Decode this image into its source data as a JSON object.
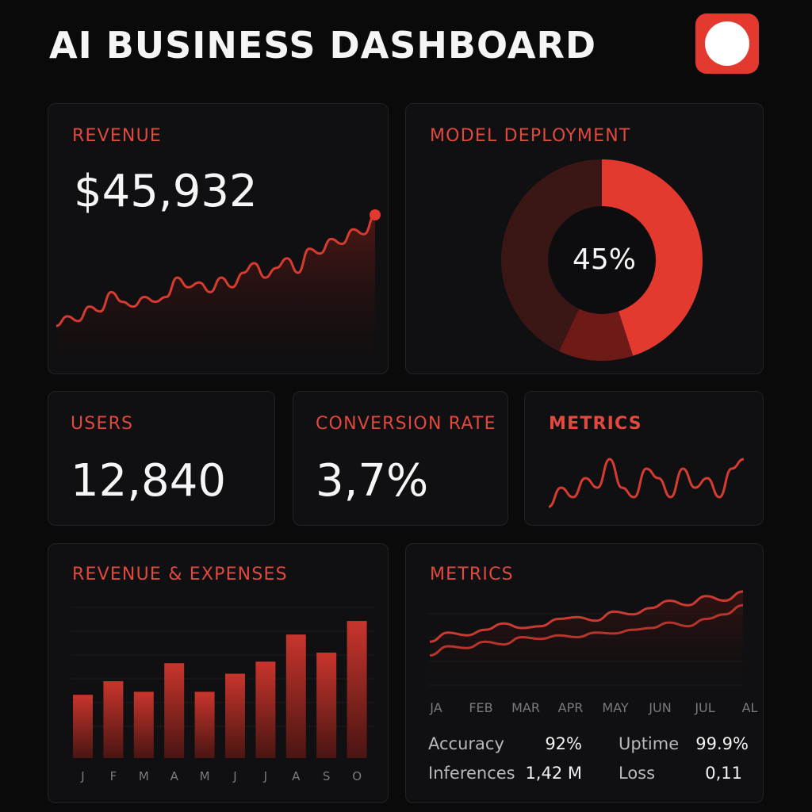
{
  "header": {
    "title": "AI BUSINESS DASHBOARD",
    "app_icon": "record-icon"
  },
  "colors": {
    "accent": "#e3392f",
    "background": "#0a0a0b",
    "card": "#101012"
  },
  "revenue": {
    "label": "REVENUE",
    "value": "$45,932",
    "trend": [
      2,
      4,
      3,
      6,
      5,
      9,
      7,
      6,
      8,
      7,
      8,
      12,
      10,
      11,
      9,
      12,
      10,
      13,
      15,
      12,
      14,
      16,
      13,
      18,
      17,
      20,
      19,
      22,
      21,
      25
    ]
  },
  "deployment": {
    "label": "MODEL DEPLOYMENT",
    "center_text": "45%",
    "segments": [
      45,
      12,
      43
    ]
  },
  "users": {
    "label": "USERS",
    "value": "12,840"
  },
  "conversion": {
    "label": "CONVERSION RATE",
    "value": "3,7%"
  },
  "metrics_small": {
    "label": "METRICS",
    "trend": [
      1,
      3,
      2,
      4,
      3,
      6,
      3,
      2,
      5,
      4,
      2,
      5,
      3,
      4,
      2,
      5,
      6
    ]
  },
  "revenue_expenses": {
    "label": "REVENUE & EXPENSES",
    "months": [
      "J",
      "F",
      "M",
      "A",
      "M",
      "J",
      "J",
      "A",
      "S",
      "O"
    ],
    "values": [
      42,
      51,
      44,
      63,
      44,
      56,
      64,
      82,
      70,
      91
    ]
  },
  "metrics_chart": {
    "label": "METRICS",
    "months": [
      "JA",
      "FEB",
      "MAR",
      "APR",
      "MAY",
      "JUN",
      "JUL",
      "AL"
    ],
    "series_a": [
      0.45,
      0.55,
      0.52,
      0.58,
      0.65,
      0.6,
      0.62,
      0.7,
      0.72,
      0.68,
      0.78,
      0.75,
      0.82,
      0.9,
      0.85,
      0.95,
      0.9,
      1.0
    ],
    "series_b": [
      0.3,
      0.4,
      0.38,
      0.45,
      0.42,
      0.5,
      0.48,
      0.52,
      0.5,
      0.55,
      0.54,
      0.58,
      0.6,
      0.66,
      0.62,
      0.7,
      0.75,
      0.85
    ],
    "stats": [
      {
        "key": "Accuracy",
        "value": "92%"
      },
      {
        "key": "Uptime",
        "value": "99.9%"
      },
      {
        "key": "Inferences",
        "value": "1,42 M"
      },
      {
        "key": "Loss",
        "value": "0,11"
      }
    ]
  }
}
